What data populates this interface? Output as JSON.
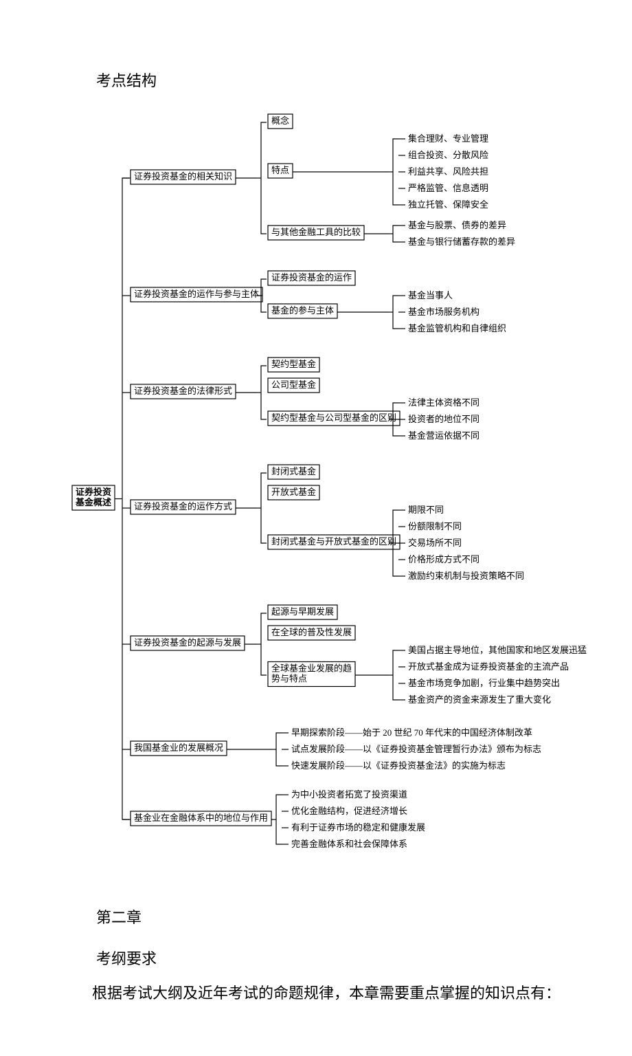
{
  "title_section": "考点结构",
  "diagram": {
    "root": "证券投资\n基金概述",
    "branches": [
      {
        "label": "证券投资基金的相关知识",
        "children": [
          {
            "label": "概念",
            "boxed": true,
            "leaves": []
          },
          {
            "label": "特点",
            "boxed": true,
            "leaves": [
              "集合理财、专业管理",
              "组合投资、分散风险",
              "利益共享、风险共担",
              "严格监管、信息透明",
              "独立托管、保障安全"
            ]
          },
          {
            "label": "与其他金融工具的比较",
            "boxed": true,
            "leaves": [
              "基金与股票、债券的差异",
              "基金与银行储蓄存款的差异"
            ]
          }
        ]
      },
      {
        "label": "证券投资基金的运作与参与主体",
        "children": [
          {
            "label": "证券投资基金的运作",
            "boxed": true,
            "leaves": []
          },
          {
            "label": "基金的参与主体",
            "boxed": true,
            "leaves": [
              "基金当事人",
              "基金市场服务机构",
              "基金监管机构和自律组织"
            ]
          }
        ]
      },
      {
        "label": "证券投资基金的法律形式",
        "children": [
          {
            "label": "契约型基金",
            "boxed": true,
            "leaves": []
          },
          {
            "label": "公司型基金",
            "boxed": true,
            "leaves": []
          },
          {
            "label": "契约型基金与公司型基金的区别",
            "boxed": true,
            "leaves": [
              "法律主体资格不同",
              "投资者的地位不同",
              "基金营运依据不同"
            ]
          }
        ]
      },
      {
        "label": "证券投资基金的运作方式",
        "children": [
          {
            "label": "封闭式基金",
            "boxed": true,
            "leaves": []
          },
          {
            "label": "开放式基金",
            "boxed": true,
            "leaves": []
          },
          {
            "label": "封闭式基金与开放式基金的区别",
            "boxed": true,
            "leaves": [
              "期限不同",
              "份额限制不同",
              "交易场所不同",
              "价格形成方式不同",
              "激励约束机制与投资策略不同"
            ]
          }
        ]
      },
      {
        "label": "证券投资基金的起源与发展",
        "children": [
          {
            "label": "起源与早期发展",
            "boxed": true,
            "leaves": []
          },
          {
            "label": "在全球的普及性发展",
            "boxed": true,
            "leaves": []
          },
          {
            "label": "全球基金业发展的趋\n势与特点",
            "boxed": true,
            "leaves": [
              "美国占据主导地位，其他国家和地区发展迅猛",
              "开放式基金成为证券投资基金的主流产品",
              "基金市场竞争加剧，行业集中趋势突出",
              "基金资产的资金来源发生了重大变化"
            ]
          }
        ]
      },
      {
        "label": "我国基金业的发展概况",
        "children": [],
        "leaves": [
          "早期探索阶段——始于 20 世纪 70 年代末的中国经济体制改革",
          "试点发展阶段——以《证券投资基金管理暂行办法》颁布为标志",
          "快速发展阶段——以《证券投资基金法》的实施为标志"
        ]
      },
      {
        "label": "基金业在金融体系中的地位与作用",
        "children": [],
        "leaves": [
          "为中小投资者拓宽了投资渠道",
          "优化金融结构，促进经济增长",
          "有利于证券市场的稳定和健康发展",
          "完善金融体系和社会保障体系"
        ]
      }
    ]
  },
  "chapter_heading": "第二章",
  "subheading": "考纲要求",
  "paragraph": "根据考试大纲及近年考试的命题规律，本章需要重点掌握的知识点有："
}
